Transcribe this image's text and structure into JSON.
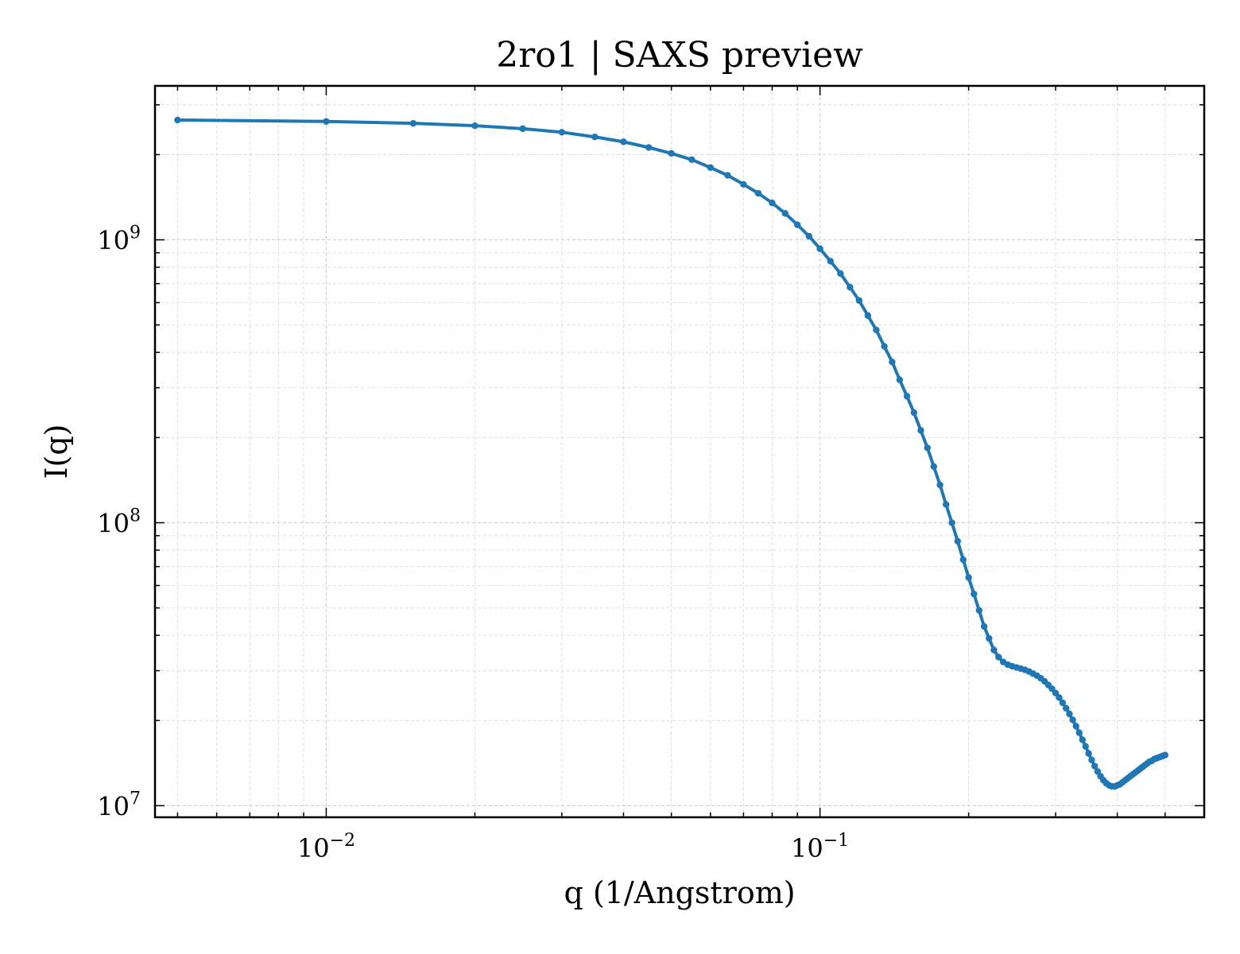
{
  "chart_data": {
    "type": "line",
    "title": "2ro1 | SAXS preview",
    "xlabel": "q (1/Angstrom)",
    "ylabel": "I(q)",
    "xscale": "log",
    "yscale": "log",
    "xlim": [
      0.0045,
      0.6
    ],
    "ylim": [
      9100000.0,
      3500000000.0
    ],
    "grid": true,
    "legend": "none",
    "x_ticks": [
      {
        "value": 0.01,
        "label": "10",
        "exp": "−2"
      },
      {
        "value": 0.1,
        "label": "10",
        "exp": "−1"
      }
    ],
    "y_ticks": [
      {
        "value": 10000000.0,
        "label": "10",
        "exp": "7"
      },
      {
        "value": 100000000.0,
        "label": "10",
        "exp": "8"
      },
      {
        "value": 1000000000.0,
        "label": "10",
        "exp": "9"
      }
    ],
    "color": "#1f77b4",
    "series": [
      {
        "x": [
          0.005,
          0.01,
          0.015,
          0.02,
          0.025,
          0.03,
          0.035,
          0.04,
          0.045,
          0.05,
          0.055,
          0.06,
          0.065,
          0.07,
          0.075,
          0.08,
          0.085,
          0.09,
          0.095,
          0.1,
          0.105,
          0.11,
          0.115,
          0.12,
          0.125,
          0.13,
          0.135,
          0.14,
          0.145,
          0.15,
          0.155,
          0.16,
          0.165,
          0.17,
          0.175,
          0.18,
          0.185,
          0.19,
          0.195,
          0.2,
          0.205,
          0.21,
          0.215,
          0.22,
          0.225,
          0.23,
          0.235,
          0.24,
          0.245,
          0.25,
          0.255,
          0.26,
          0.265,
          0.27,
          0.275,
          0.28,
          0.285,
          0.29,
          0.295,
          0.3,
          0.305,
          0.31,
          0.315,
          0.32,
          0.325,
          0.33,
          0.335,
          0.34,
          0.345,
          0.35,
          0.355,
          0.36,
          0.365,
          0.37,
          0.375,
          0.38,
          0.385,
          0.39,
          0.395,
          0.4,
          0.405,
          0.41,
          0.415,
          0.42,
          0.425,
          0.43,
          0.435,
          0.44,
          0.445,
          0.45,
          0.455,
          0.46,
          0.465,
          0.47,
          0.475,
          0.48,
          0.485,
          0.49,
          0.495,
          0.5
        ],
        "y": [
          2650000000.0,
          2620000000.0,
          2580000000.0,
          2530000000.0,
          2470000000.0,
          2400000000.0,
          2310000000.0,
          2220000000.0,
          2120000000.0,
          2020000000.0,
          1920000000.0,
          1800000000.0,
          1690000000.0,
          1570000000.0,
          1460000000.0,
          1350000000.0,
          1240000000.0,
          1130000000.0,
          1030000000.0,
          930000000.0,
          840000000.0,
          760000000.0,
          680000000.0,
          610000000.0,
          540000000.0,
          480000000.0,
          420000000.0,
          370000000.0,
          320000000.0,
          280000000.0,
          245000000.0,
          212000000.0,
          184000000.0,
          158000000.0,
          136000000.0,
          116000000.0,
          100000000.0,
          86000000.0,
          74000000.0,
          64000000.0,
          56000000.0,
          49000000.0,
          43000000.0,
          39000000.0,
          35500000.0,
          33500000.0,
          32200000.0,
          31500000.0,
          31100000.0,
          30800000.0,
          30500000.0,
          30200000.0,
          29800000.0,
          29300000.0,
          28800000.0,
          28200000.0,
          27500000.0,
          26700000.0,
          25900000.0,
          25000000.0,
          24100000.0,
          23100000.0,
          22100000.0,
          21100000.0,
          20100000.0,
          19100000.0,
          18100000.0,
          17100000.0,
          16200000.0,
          15300000.0,
          14500000.0,
          13800000.0,
          13200000.0,
          12700000.0,
          12300000.0,
          12000000.0,
          11800000.0,
          11700000.0,
          11700000.0,
          11800000.0,
          11900000.0,
          12100000.0,
          12300000.0,
          12500000.0,
          12700000.0,
          12900000.0,
          13100000.0,
          13300000.0,
          13500000.0,
          13700000.0,
          13900000.0,
          14100000.0,
          14300000.0,
          14400000.0,
          14600000.0,
          14700000.0,
          14800000.0,
          14900000.0,
          15000000.0,
          15100000.0
        ]
      }
    ]
  }
}
